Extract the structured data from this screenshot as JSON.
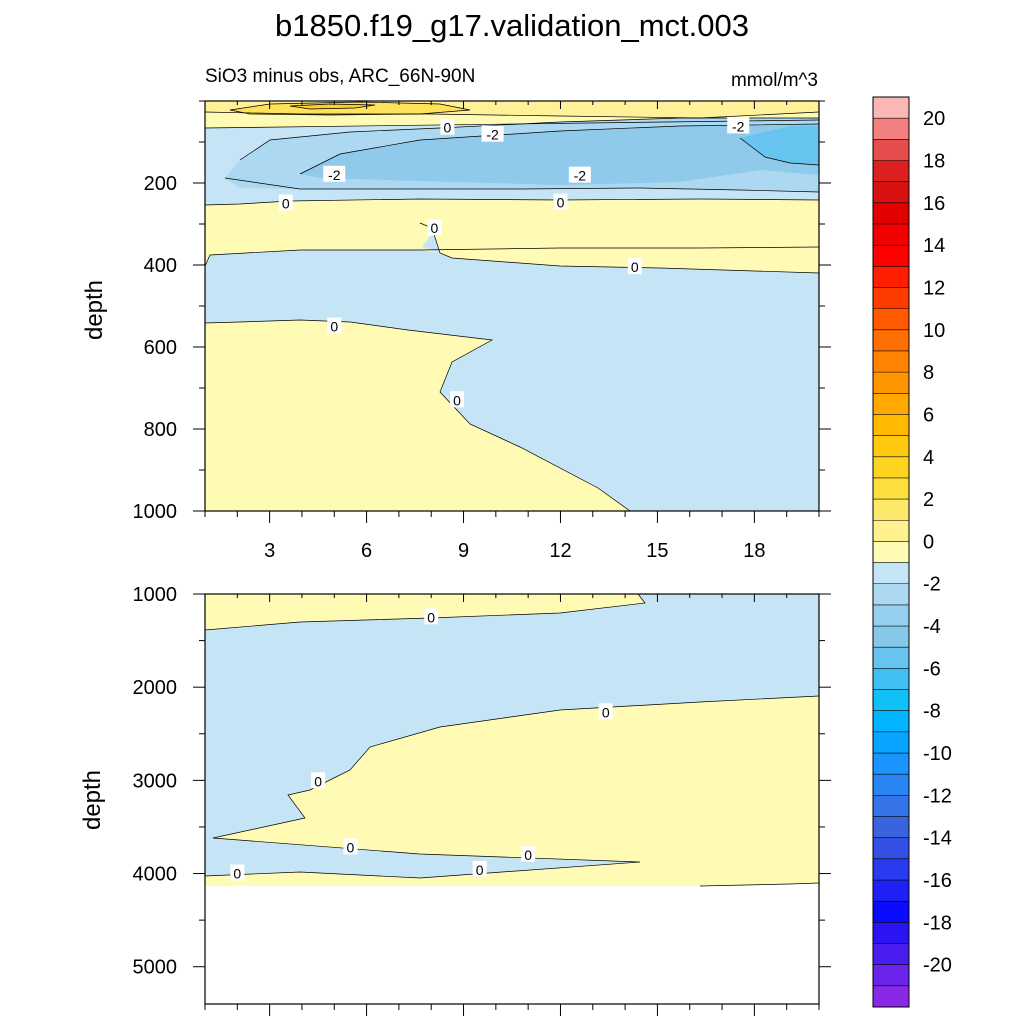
{
  "figure": {
    "title": "b1850.f19_g17.validation_mct.003",
    "subtitle_left": "SiO3 minus obs, ARC_66N-90N",
    "subtitle_right": "mmol/m^3"
  },
  "colors": {
    "positive_0_2": "#fffbb4",
    "negative_0_1": "#c5e5f6",
    "negative_1_2": "#acd8f1",
    "negative_2_3": "#8fcaea",
    "negative_3_4": "#66c4ee",
    "positive_2_3": "#fff09a",
    "positive_3_4": "#fde25a",
    "positive_4_5": "#fbd12a",
    "background": "#ffffff"
  },
  "chart_data": [
    {
      "type": "contour",
      "panel": "upper",
      "xlabel": "",
      "ylabel": "depth",
      "xlim": [
        1,
        20
      ],
      "ylim": [
        1000,
        0
      ],
      "x_ticks": [
        3,
        6,
        9,
        12,
        15,
        18
      ],
      "y_ticks": [
        200,
        400,
        600,
        800,
        1000
      ],
      "contour_labels": [
        {
          "text": "0",
          "x": 8.5,
          "y": 65
        },
        {
          "text": "-2",
          "x": 9.9,
          "y": 82
        },
        {
          "text": "-2",
          "x": 17.5,
          "y": 62
        },
        {
          "text": "-2",
          "x": 5.0,
          "y": 180
        },
        {
          "text": "-2",
          "x": 12.6,
          "y": 182
        },
        {
          "text": "0",
          "x": 3.5,
          "y": 250
        },
        {
          "text": "0",
          "x": 12.0,
          "y": 248
        },
        {
          "text": "0",
          "x": 8.1,
          "y": 310
        },
        {
          "text": "0",
          "x": 14.3,
          "y": 405
        },
        {
          "text": "0",
          "x": 5.0,
          "y": 550
        },
        {
          "text": "0",
          "x": 8.8,
          "y": 730
        }
      ]
    },
    {
      "type": "contour",
      "panel": "lower",
      "xlabel": "",
      "ylabel": "depth",
      "xlim": [
        1,
        20
      ],
      "ylim": [
        5400,
        1000
      ],
      "x_ticks": [
        3,
        6,
        9,
        12,
        15,
        18
      ],
      "y_ticks": [
        1000,
        2000,
        3000,
        4000,
        5000
      ],
      "contour_labels": [
        {
          "text": "0",
          "x": 8.0,
          "y": 1250
        },
        {
          "text": "0",
          "x": 13.4,
          "y": 2270
        },
        {
          "text": "0",
          "x": 4.5,
          "y": 3010
        },
        {
          "text": "0",
          "x": 5.5,
          "y": 3720
        },
        {
          "text": "0",
          "x": 11.0,
          "y": 3800
        },
        {
          "text": "0",
          "x": 9.5,
          "y": 3960
        },
        {
          "text": "0",
          "x": 2.0,
          "y": 4000
        }
      ]
    },
    {
      "type": "colorbar",
      "labels": [
        "20",
        "18",
        "16",
        "14",
        "12",
        "10",
        "8",
        "6",
        "4",
        "2",
        "0",
        "-2",
        "-4",
        "-6",
        "-8",
        "-10",
        "-12",
        "-14",
        "-16",
        "-18",
        "-20"
      ],
      "levels": [
        20,
        18,
        16,
        14,
        12,
        10,
        8,
        6,
        4,
        2,
        0,
        -2,
        -4,
        -6,
        -8,
        -10,
        -12,
        -14,
        -16,
        -18,
        -20
      ],
      "colors": [
        "#fbb6b6",
        "#f38080",
        "#e54c4c",
        "#dc1f1f",
        "#d91010",
        "#e30000",
        "#f20000",
        "#ff0000",
        "#ff1e00",
        "#ff3c00",
        "#ff5a00",
        "#ff6e00",
        "#ff8200",
        "#ff9600",
        "#ffa800",
        "#ffba00",
        "#ffc910",
        "#fdd520",
        "#fde03e",
        "#fee86a",
        "#fff18e",
        "#fffbb4",
        "#c5e5f6",
        "#acd8f1",
        "#97d0ee",
        "#86c8ea",
        "#66c4ee",
        "#3fc0f0",
        "#10c0f6",
        "#00b4ff",
        "#08a4ff",
        "#1a94ff",
        "#2984f4",
        "#3474e8",
        "#3a64de",
        "#3450e4",
        "#2a3aee",
        "#1e20f6",
        "#0a0aff",
        "#2a14f4",
        "#4a1cee",
        "#6a24ea",
        "#8a28e8"
      ]
    }
  ]
}
